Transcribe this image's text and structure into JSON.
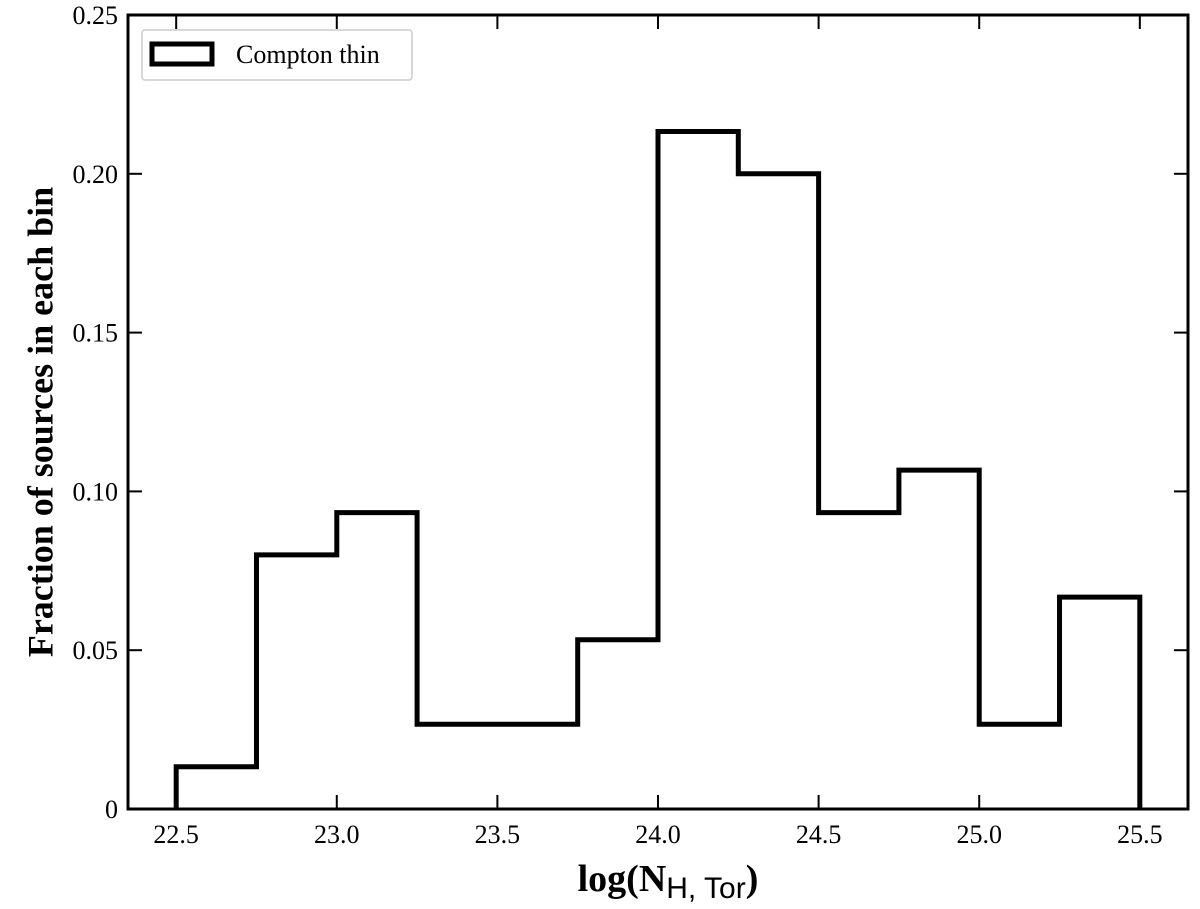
{
  "chart_data": {
    "type": "histogram-step",
    "xlabel": {
      "main": "log(N",
      "sub": "H, Tor",
      "close": ")"
    },
    "ylabel": "Fraction of sources in each bin",
    "xlim": [
      22.35,
      25.65
    ],
    "ylim": [
      0,
      0.25
    ],
    "xticks": [
      22.5,
      23.0,
      23.5,
      24.0,
      24.5,
      25.0,
      25.5
    ],
    "xtick_labels": [
      "22.5",
      "23.0",
      "23.5",
      "24.0",
      "24.5",
      "25.0",
      "25.5"
    ],
    "yticks": [
      0,
      0.05,
      0.1,
      0.15,
      0.2,
      0.25
    ],
    "ytick_labels": [
      "0",
      "0.05",
      "0.10",
      "0.15",
      "0.20",
      "0.25"
    ],
    "bin_edges": [
      22.5,
      22.75,
      23.0,
      23.25,
      23.5,
      23.75,
      24.0,
      24.25,
      24.5,
      24.75,
      25.0,
      25.25,
      25.5
    ],
    "series": [
      {
        "name": "Compton thin",
        "values": [
          0.0133,
          0.08,
          0.0933,
          0.0267,
          0.0267,
          0.0533,
          0.2133,
          0.2,
          0.0933,
          0.1067,
          0.0267,
          0.0667
        ],
        "color": "#000000"
      }
    ],
    "legend": {
      "position": "top-left"
    },
    "grid": false
  }
}
